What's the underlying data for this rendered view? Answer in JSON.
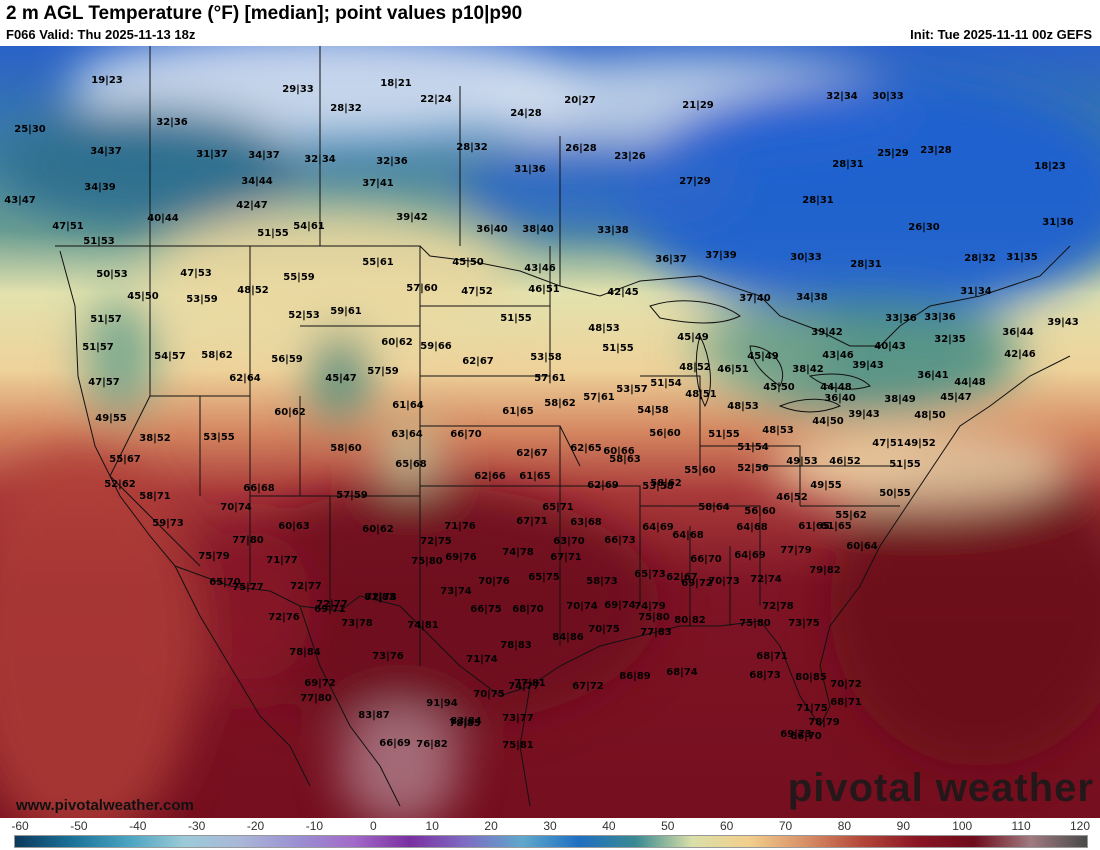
{
  "header": {
    "title": "2 m AGL Temperature (°F) [median]; point values p10|p90",
    "valid": "F066 Valid: Thu 2025-11-13 18z",
    "init": "Init: Tue 2025-11-11 00z GEFS"
  },
  "footer": {
    "website": "www.pivotalweather.com",
    "brand": "pivotal weather"
  },
  "colorbar": {
    "ticks": [
      "-60",
      "-50",
      "-40",
      "-30",
      "-20",
      "-10",
      "0",
      "10",
      "20",
      "30",
      "40",
      "50",
      "60",
      "70",
      "80",
      "90",
      "100",
      "110",
      "120"
    ],
    "colors": [
      "#0c3a5c",
      "#1b7199",
      "#4aa3c0",
      "#9bcbd8",
      "#aab7d8",
      "#9a90d2",
      "#a26ac9",
      "#7a2fa1",
      "#7e6ec4",
      "#5fa8cc",
      "#1f6fc2",
      "#3a8a92",
      "#d9dfa8",
      "#f2cf8c",
      "#d89068",
      "#b4483a",
      "#8a1524",
      "#6e0c1c",
      "#a07a80",
      "#4a4a4a"
    ]
  },
  "map_points": [
    {
      "label": "19|23"
    },
    {
      "label": "29|33"
    },
    {
      "label": "18|21"
    },
    {
      "label": "22|24"
    },
    {
      "label": "20|27"
    },
    {
      "label": "24|28"
    },
    {
      "label": "21|29"
    },
    {
      "label": "32|34"
    },
    {
      "label": "30|33"
    },
    {
      "label": "25|30"
    },
    {
      "label": "32|36"
    },
    {
      "label": "28|32"
    },
    {
      "label": "34|37"
    },
    {
      "label": "31|37"
    },
    {
      "label": "34|37"
    },
    {
      "label": "32|34"
    },
    {
      "label": "32|36"
    },
    {
      "label": "28|32"
    },
    {
      "label": "26|28"
    },
    {
      "label": "23|26"
    },
    {
      "label": "28|31"
    },
    {
      "label": "25|29"
    },
    {
      "label": "23|28"
    },
    {
      "label": "18|23"
    },
    {
      "label": "34|39"
    },
    {
      "label": "34|44"
    },
    {
      "label": "37|41"
    },
    {
      "label": "31|36"
    },
    {
      "label": "27|29"
    },
    {
      "label": "43|47"
    },
    {
      "label": "42|47"
    },
    {
      "label": "28|31"
    },
    {
      "label": "40|44"
    },
    {
      "label": "39|42"
    },
    {
      "label": "47|51"
    },
    {
      "label": "51|55"
    },
    {
      "label": "54|61"
    },
    {
      "label": "36|40"
    },
    {
      "label": "38|40"
    },
    {
      "label": "33|38"
    },
    {
      "label": "26|30"
    },
    {
      "label": "31|36"
    },
    {
      "label": "51|53"
    },
    {
      "label": "55|61"
    },
    {
      "label": "45|50"
    },
    {
      "label": "43|46"
    },
    {
      "label": "36|37"
    },
    {
      "label": "37|39"
    },
    {
      "label": "30|33"
    },
    {
      "label": "28|31"
    },
    {
      "label": "28|32"
    },
    {
      "label": "31|35"
    },
    {
      "label": "50|53"
    },
    {
      "label": "47|53"
    },
    {
      "label": "48|52"
    },
    {
      "label": "55|59"
    },
    {
      "label": "57|60"
    },
    {
      "label": "47|52"
    },
    {
      "label": "46|51"
    },
    {
      "label": "42|45"
    },
    {
      "label": "37|40"
    },
    {
      "label": "34|38"
    },
    {
      "label": "31|34"
    },
    {
      "label": "45|50"
    },
    {
      "label": "53|59"
    },
    {
      "label": "52|53"
    },
    {
      "label": "59|61"
    },
    {
      "label": "51|55"
    },
    {
      "label": "48|53"
    },
    {
      "label": "33|36"
    },
    {
      "label": "33|36"
    },
    {
      "label": "39|43"
    },
    {
      "label": "51|57"
    },
    {
      "label": "60|62"
    },
    {
      "label": "59|66"
    },
    {
      "label": "53|58"
    },
    {
      "label": "51|55"
    },
    {
      "label": "45|49"
    },
    {
      "label": "39|42"
    },
    {
      "label": "36|44"
    },
    {
      "label": "51|57"
    },
    {
      "label": "54|57"
    },
    {
      "label": "58|62"
    },
    {
      "label": "56|59"
    },
    {
      "label": "45|47"
    },
    {
      "label": "57|59"
    },
    {
      "label": "62|67"
    },
    {
      "label": "57|61"
    },
    {
      "label": "48|52"
    },
    {
      "label": "46|51"
    },
    {
      "label": "45|49"
    },
    {
      "label": "43|46"
    },
    {
      "label": "40|43"
    },
    {
      "label": "32|35"
    },
    {
      "label": "42|46"
    },
    {
      "label": "47|57"
    },
    {
      "label": "62|64"
    },
    {
      "label": "53|57"
    },
    {
      "label": "51|54"
    },
    {
      "label": "38|42"
    },
    {
      "label": "39|43"
    },
    {
      "label": "36|41"
    },
    {
      "label": "44|48"
    },
    {
      "label": "49|55"
    },
    {
      "label": "60|62"
    },
    {
      "label": "61|64"
    },
    {
      "label": "61|65"
    },
    {
      "label": "58|62"
    },
    {
      "label": "57|61"
    },
    {
      "label": "54|58"
    },
    {
      "label": "48|51"
    },
    {
      "label": "48|53"
    },
    {
      "label": "45|50"
    },
    {
      "label": "44|48"
    },
    {
      "label": "36|40"
    },
    {
      "label": "39|43"
    },
    {
      "label": "38|49"
    },
    {
      "label": "45|47"
    },
    {
      "label": "38|52"
    },
    {
      "label": "53|55"
    },
    {
      "label": "63|64"
    },
    {
      "label": "66|70"
    },
    {
      "label": "56|60"
    },
    {
      "label": "51|55"
    },
    {
      "label": "48|53"
    },
    {
      "label": "44|50"
    },
    {
      "label": "48|50"
    },
    {
      "label": "49|52"
    },
    {
      "label": "58|60"
    },
    {
      "label": "62|67"
    },
    {
      "label": "62|65"
    },
    {
      "label": "60|66"
    },
    {
      "label": "51|54"
    },
    {
      "label": "47|51"
    },
    {
      "label": "55|67"
    },
    {
      "label": "65|68"
    },
    {
      "label": "58|63"
    },
    {
      "label": "52|56"
    },
    {
      "label": "49|53"
    },
    {
      "label": "46|52"
    },
    {
      "label": "51|55"
    },
    {
      "label": "52|62"
    },
    {
      "label": "62|66"
    },
    {
      "label": "61|65"
    },
    {
      "label": "55|60"
    },
    {
      "label": "53|58"
    },
    {
      "label": "58|71"
    },
    {
      "label": "66|68"
    },
    {
      "label": "57|59"
    },
    {
      "label": "62|69"
    },
    {
      "label": "58|62"
    },
    {
      "label": "49|55"
    },
    {
      "label": "50|55"
    },
    {
      "label": "70|74"
    },
    {
      "label": "58|64"
    },
    {
      "label": "46|52"
    },
    {
      "label": "56|60"
    },
    {
      "label": "55|62"
    },
    {
      "label": "65|71"
    },
    {
      "label": "59|73"
    },
    {
      "label": "60|63"
    },
    {
      "label": "60|62"
    },
    {
      "label": "71|76"
    },
    {
      "label": "67|71"
    },
    {
      "label": "63|68"
    },
    {
      "label": "64|69"
    },
    {
      "label": "61|65"
    },
    {
      "label": "61|65"
    },
    {
      "label": "77|80"
    },
    {
      "label": "72|75"
    },
    {
      "label": "66|73"
    },
    {
      "label": "64|68"
    },
    {
      "label": "60|64"
    },
    {
      "label": "64|68"
    },
    {
      "label": "75|79"
    },
    {
      "label": "74|78"
    },
    {
      "label": "63|70"
    },
    {
      "label": "62|67"
    },
    {
      "label": "64|69"
    },
    {
      "label": "77|79"
    },
    {
      "label": "71|77"
    },
    {
      "label": "75|80"
    },
    {
      "label": "69|76"
    },
    {
      "label": "67|71"
    },
    {
      "label": "66|70"
    },
    {
      "label": "79|82"
    },
    {
      "label": "75|77"
    },
    {
      "label": "72|77"
    },
    {
      "label": "70|76"
    },
    {
      "label": "65|75"
    },
    {
      "label": "65|73"
    },
    {
      "label": "69|72"
    },
    {
      "label": "65|70"
    },
    {
      "label": "72|78"
    },
    {
      "label": "66|75"
    },
    {
      "label": "58|73"
    },
    {
      "label": "70|73"
    },
    {
      "label": "72|74"
    },
    {
      "label": "75|80"
    },
    {
      "label": "74|79"
    },
    {
      "label": "72|78"
    },
    {
      "label": "72|77"
    },
    {
      "label": "81|83"
    },
    {
      "label": "69|71"
    },
    {
      "label": "73|74"
    },
    {
      "label": "68|70"
    },
    {
      "label": "70|74"
    },
    {
      "label": "69|74"
    },
    {
      "label": "72|76"
    },
    {
      "label": "73|78"
    },
    {
      "label": "74|81"
    },
    {
      "label": "80|82"
    },
    {
      "label": "75|80"
    },
    {
      "label": "73|75"
    },
    {
      "label": "77|83"
    },
    {
      "label": "70|75"
    },
    {
      "label": "84|86"
    },
    {
      "label": "78|84"
    },
    {
      "label": "78|83"
    },
    {
      "label": "73|76"
    },
    {
      "label": "71|74"
    },
    {
      "label": "68|71"
    },
    {
      "label": "69|72"
    },
    {
      "label": "74|77"
    },
    {
      "label": "77|81"
    },
    {
      "label": "67|72"
    },
    {
      "label": "86|89"
    },
    {
      "label": "68|74"
    },
    {
      "label": "68|73"
    },
    {
      "label": "80|85"
    },
    {
      "label": "70|72"
    },
    {
      "label": "77|80"
    },
    {
      "label": "70|75"
    },
    {
      "label": "91|94"
    },
    {
      "label": "78|85"
    },
    {
      "label": "71|75"
    },
    {
      "label": "83|87"
    },
    {
      "label": "68|71"
    },
    {
      "label": "73|77"
    },
    {
      "label": "69|73"
    },
    {
      "label": "78|79"
    },
    {
      "label": "66|69"
    },
    {
      "label": "83|84"
    },
    {
      "label": "76|82"
    },
    {
      "label": "75|81"
    },
    {
      "label": "66|70"
    }
  ]
}
